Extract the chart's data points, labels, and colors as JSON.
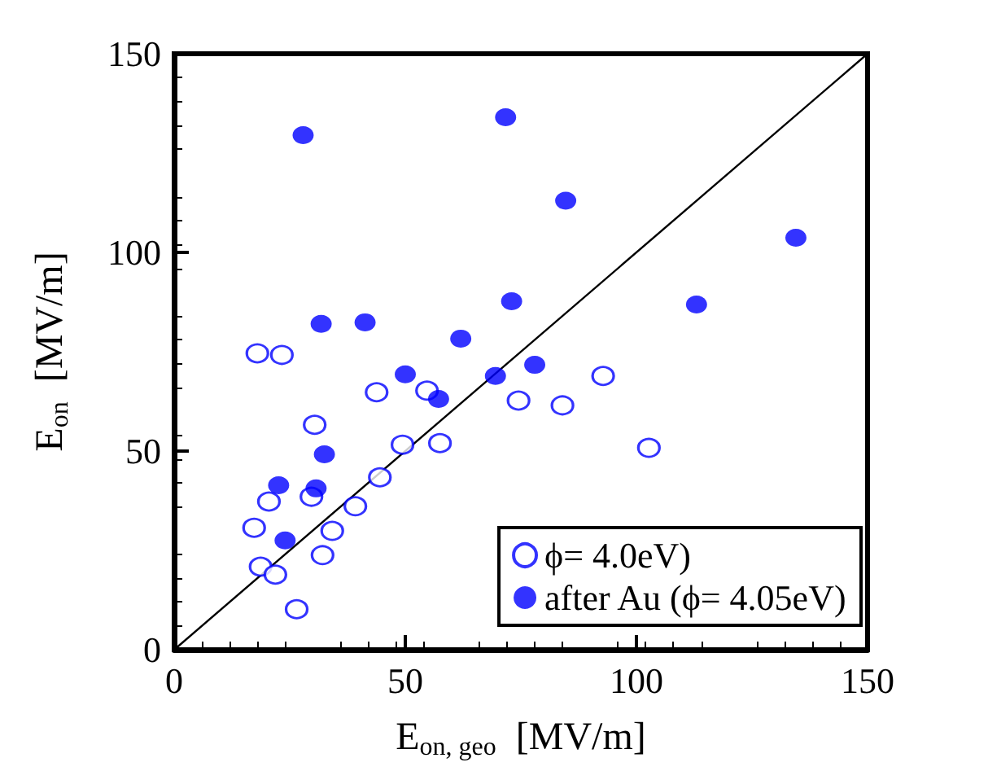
{
  "chart_data": {
    "type": "scatter",
    "xlabel": "E$_{on, geo}$  [MV/m]",
    "ylabel": "E$_{on}$  [MV/m]",
    "xlim": [
      0,
      150
    ],
    "ylim": [
      0,
      150
    ],
    "xticks": [
      0,
      50,
      100,
      150
    ],
    "yticks": [
      0,
      50,
      100,
      150
    ],
    "grid": false,
    "legend": "bottom right",
    "marker": "circle",
    "series": [
      {
        "name": "ϕ= 4.0eV)",
        "color": "#0000ff",
        "x": [
          18,
          23.3,
          43.8,
          54.7,
          74.5,
          84,
          92.8,
          102.7,
          30.4,
          49.4,
          57.5,
          44.5,
          20.5,
          29.7,
          39.2,
          17.3,
          34.2,
          18.7,
          21.9,
          32.1,
          26.5
        ],
        "values": [
          74.6,
          74.2,
          64.8,
          65.2,
          62.7,
          61.5,
          68.9,
          50.8,
          56.6,
          51.6,
          52,
          43.4,
          37.3,
          38.5,
          36.1,
          30.7,
          29.9,
          20.9,
          18.9,
          23.8,
          10.2
        ]
      },
      {
        "name": "after Au (ϕ= 4.05eV)",
        "color": "#0000ff",
        "x": [
          27.9,
          71.7,
          84.7,
          134.5,
          73,
          113,
          31.8,
          41.3,
          62,
          69.5,
          78,
          50,
          57.2,
          32.5,
          22.6,
          30.7,
          24
        ],
        "values": [
          129.5,
          134,
          113,
          103.7,
          87.7,
          86.9,
          82,
          82.4,
          78.3,
          68.9,
          71.7,
          69.3,
          63.1,
          49.2,
          41.4,
          40.6,
          27.5
        ]
      },
      {
        "type": "line",
        "color": "#000000",
        "marker": "none",
        "x": [
          0,
          150
        ],
        "values": [
          0,
          150
        ]
      }
    ]
  }
}
